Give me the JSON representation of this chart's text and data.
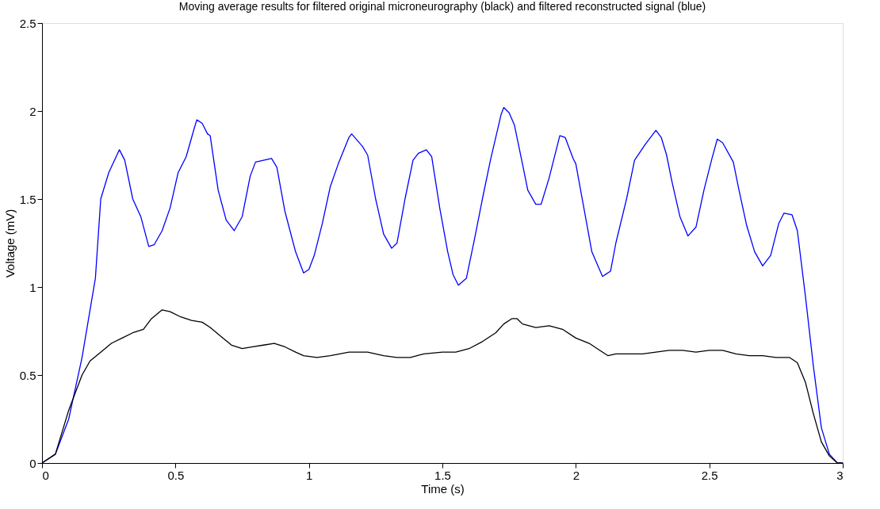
{
  "chart_data": {
    "type": "line",
    "title": "Moving average results for filtered original microneurography (black) and filtered reconstructed signal (blue)",
    "xlabel": "Time (s)",
    "ylabel": "Voltage (mV)",
    "xlim": [
      0,
      3
    ],
    "xticks": [
      0,
      0.5,
      1,
      1.5,
      2,
      2.5,
      3
    ],
    "ylim": [
      0,
      2.5
    ],
    "yticks": [
      0,
      0.5,
      1,
      1.5,
      2,
      2.5
    ],
    "grid": false,
    "legend": false,
    "line_style": "solid",
    "marker": "none",
    "series": [
      {
        "color": "#0000ff",
        "x": [
          0,
          0.05,
          0.1,
          0.15,
          0.2,
          0.22,
          0.25,
          0.29,
          0.31,
          0.34,
          0.37,
          0.4,
          0.42,
          0.45,
          0.48,
          0.51,
          0.54,
          0.57,
          0.58,
          0.6,
          0.62,
          0.63,
          0.66,
          0.69,
          0.72,
          0.75,
          0.78,
          0.8,
          0.83,
          0.86,
          0.88,
          0.91,
          0.95,
          0.98,
          1.0,
          1.02,
          1.05,
          1.08,
          1.11,
          1.15,
          1.16,
          1.2,
          1.22,
          1.25,
          1.28,
          1.31,
          1.33,
          1.36,
          1.39,
          1.41,
          1.44,
          1.46,
          1.49,
          1.52,
          1.54,
          1.56,
          1.59,
          1.62,
          1.65,
          1.68,
          1.72,
          1.73,
          1.75,
          1.77,
          1.8,
          1.82,
          1.85,
          1.87,
          1.9,
          1.93,
          1.94,
          1.96,
          1.99,
          2.0,
          2.03,
          2.06,
          2.1,
          2.13,
          2.15,
          2.19,
          2.22,
          2.26,
          2.3,
          2.32,
          2.34,
          2.36,
          2.39,
          2.42,
          2.45,
          2.48,
          2.51,
          2.53,
          2.55,
          2.59,
          2.61,
          2.64,
          2.67,
          2.7,
          2.73,
          2.76,
          2.78,
          2.81,
          2.83,
          2.86,
          2.89,
          2.92,
          2.95,
          2.98,
          3.0
        ],
        "values": [
          0,
          0.05,
          0.25,
          0.6,
          1.05,
          1.5,
          1.65,
          1.78,
          1.72,
          1.5,
          1.4,
          1.23,
          1.24,
          1.32,
          1.45,
          1.65,
          1.74,
          1.9,
          1.95,
          1.93,
          1.87,
          1.86,
          1.55,
          1.38,
          1.32,
          1.4,
          1.63,
          1.71,
          1.72,
          1.73,
          1.68,
          1.43,
          1.2,
          1.08,
          1.1,
          1.18,
          1.36,
          1.57,
          1.7,
          1.85,
          1.87,
          1.8,
          1.75,
          1.5,
          1.3,
          1.22,
          1.25,
          1.5,
          1.72,
          1.76,
          1.78,
          1.74,
          1.45,
          1.2,
          1.07,
          1.01,
          1.05,
          1.27,
          1.5,
          1.72,
          1.98,
          2.02,
          1.99,
          1.92,
          1.7,
          1.55,
          1.47,
          1.47,
          1.62,
          1.8,
          1.86,
          1.85,
          1.73,
          1.7,
          1.45,
          1.2,
          1.06,
          1.09,
          1.25,
          1.5,
          1.72,
          1.81,
          1.89,
          1.85,
          1.75,
          1.6,
          1.4,
          1.29,
          1.34,
          1.55,
          1.73,
          1.84,
          1.82,
          1.71,
          1.56,
          1.35,
          1.2,
          1.12,
          1.18,
          1.36,
          1.42,
          1.41,
          1.32,
          0.95,
          0.55,
          0.2,
          0.05,
          0,
          0
        ]
      },
      {
        "color": "#000000",
        "x": [
          0,
          0.05,
          0.1,
          0.15,
          0.18,
          0.22,
          0.26,
          0.3,
          0.34,
          0.38,
          0.41,
          0.45,
          0.48,
          0.52,
          0.56,
          0.6,
          0.63,
          0.67,
          0.71,
          0.75,
          0.79,
          0.83,
          0.87,
          0.91,
          0.95,
          0.98,
          1.03,
          1.08,
          1.15,
          1.22,
          1.28,
          1.33,
          1.38,
          1.43,
          1.5,
          1.55,
          1.6,
          1.65,
          1.7,
          1.73,
          1.76,
          1.78,
          1.8,
          1.85,
          1.9,
          1.95,
          2.0,
          2.05,
          2.08,
          2.12,
          2.15,
          2.2,
          2.25,
          2.3,
          2.35,
          2.4,
          2.45,
          2.5,
          2.55,
          2.6,
          2.65,
          2.7,
          2.75,
          2.8,
          2.83,
          2.86,
          2.89,
          2.92,
          2.95,
          2.98,
          3.0
        ],
        "values": [
          0,
          0.05,
          0.3,
          0.5,
          0.58,
          0.63,
          0.68,
          0.71,
          0.74,
          0.76,
          0.82,
          0.87,
          0.86,
          0.83,
          0.81,
          0.8,
          0.77,
          0.72,
          0.67,
          0.65,
          0.66,
          0.67,
          0.68,
          0.66,
          0.63,
          0.61,
          0.6,
          0.61,
          0.63,
          0.63,
          0.61,
          0.6,
          0.6,
          0.62,
          0.63,
          0.63,
          0.65,
          0.69,
          0.74,
          0.79,
          0.82,
          0.82,
          0.79,
          0.77,
          0.78,
          0.76,
          0.71,
          0.68,
          0.65,
          0.61,
          0.62,
          0.62,
          0.62,
          0.63,
          0.64,
          0.64,
          0.63,
          0.64,
          0.64,
          0.62,
          0.61,
          0.61,
          0.6,
          0.6,
          0.57,
          0.46,
          0.28,
          0.12,
          0.04,
          0,
          0
        ]
      }
    ]
  }
}
